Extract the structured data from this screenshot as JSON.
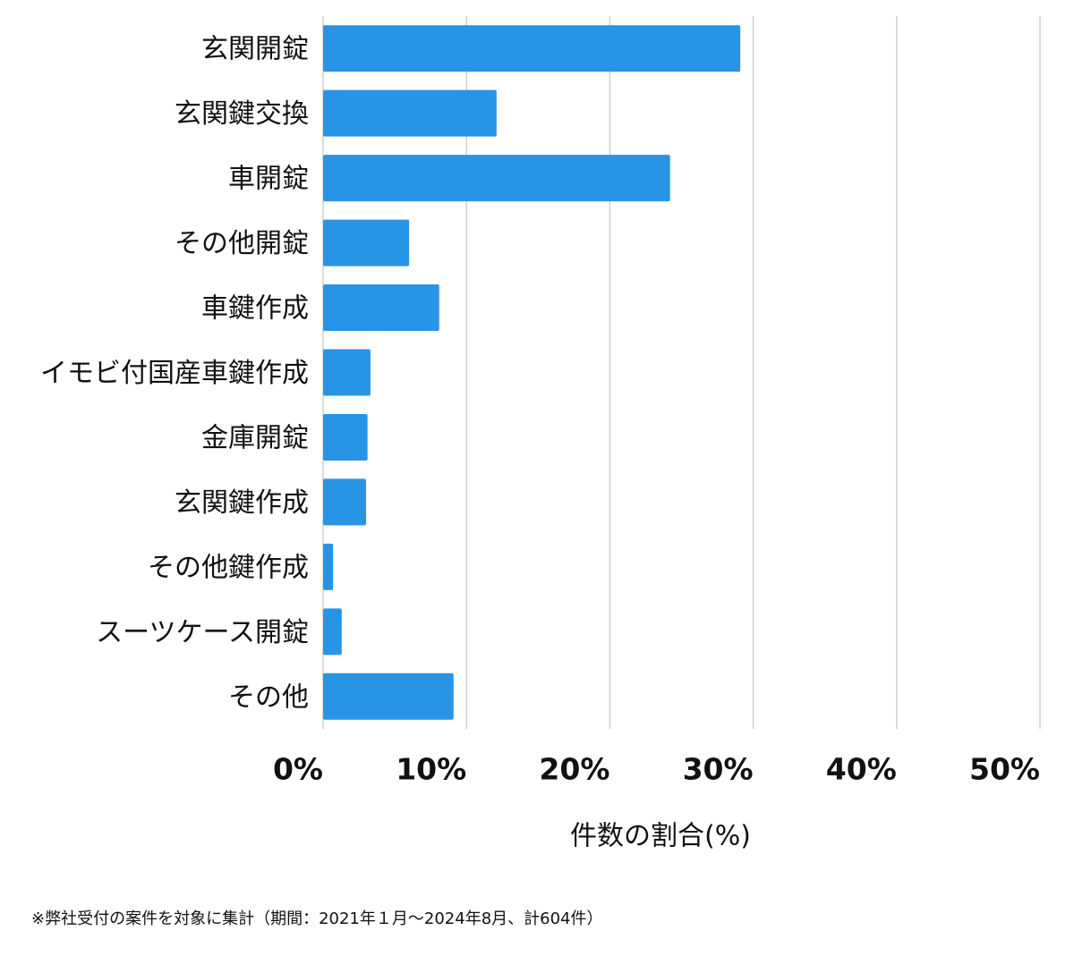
{
  "chart_data": {
    "type": "bar",
    "orientation": "horizontal",
    "categories": [
      "玄関開錠",
      "玄関鍵交換",
      "車開錠",
      "その他開錠",
      "車鍵作成",
      "イモビ付国産車鍵作成",
      "金庫開錠",
      "玄関鍵作成",
      "その他鍵作成",
      "スーツケース開錠",
      "その他"
    ],
    "values": [
      29.1,
      12.1,
      24.2,
      6.0,
      8.1,
      3.3,
      3.1,
      3.0,
      0.7,
      1.3,
      9.1
    ],
    "color": "#2894e6",
    "xlim": [
      0,
      50
    ],
    "xticks": [
      {
        "value": 0,
        "label": "0%"
      },
      {
        "value": 10,
        "label": "10%"
      },
      {
        "value": 20,
        "label": "20%"
      },
      {
        "value": 30,
        "label": "30%"
      },
      {
        "value": 40,
        "label": "40%"
      },
      {
        "value": 50,
        "label": "50%"
      }
    ],
    "grid": true,
    "x_label": "件数の割合(%)"
  },
  "footnote": "※弊社受付の案件を対象に集計（期間：2021年１月〜2024年8月、計604件）"
}
